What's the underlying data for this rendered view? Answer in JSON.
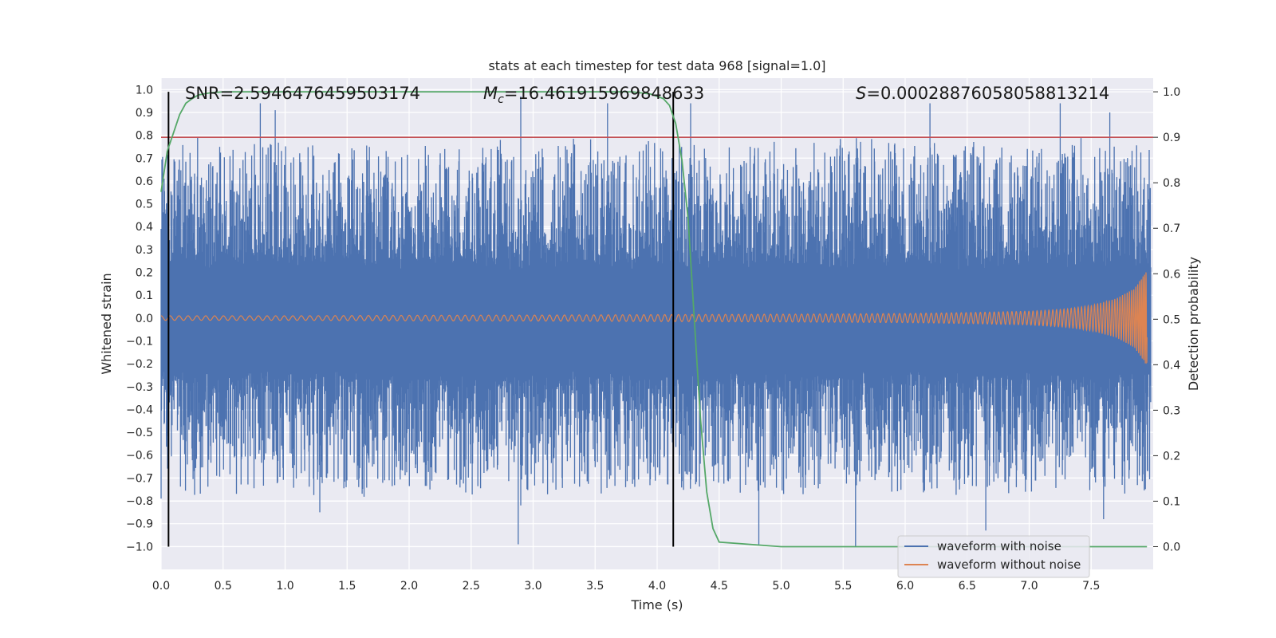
{
  "chart_data": {
    "type": "line",
    "title": "stats at each timestep for test data 968 [signal=1.0]",
    "xlabel": "Time (s)",
    "ylabel": "Whitened strain",
    "y2label": "Detection probability",
    "xlim": [
      0.0,
      8.0
    ],
    "ylim": [
      -1.1,
      1.05
    ],
    "y2lim": [
      -0.05,
      1.03
    ],
    "x_ticks": [
      "0.0",
      "0.5",
      "1.0",
      "1.5",
      "2.0",
      "2.5",
      "3.0",
      "3.5",
      "4.0",
      "4.5",
      "5.0",
      "5.5",
      "6.0",
      "6.5",
      "7.0",
      "7.5"
    ],
    "y_ticks": [
      "1.0",
      "0.9",
      "0.8",
      "0.7",
      "0.6",
      "0.5",
      "0.4",
      "0.3",
      "0.2",
      "0.1",
      "0.0",
      "−0.1",
      "−0.2",
      "−0.3",
      "−0.4",
      "−0.5",
      "−0.6",
      "−0.7",
      "−0.8",
      "−0.9",
      "−1.0"
    ],
    "y2_ticks": [
      "1.0",
      "0.9",
      "0.8",
      "0.7",
      "0.6",
      "0.5",
      "0.4",
      "0.3",
      "0.2",
      "0.1",
      "0.0"
    ],
    "grid": true,
    "legend_placement": "lower-right",
    "annotations": {
      "snr": "SNR=2.5946476459503174",
      "mc_symbol": "M",
      "mc_sub": "c",
      "mc_value": "=16.461915969848633",
      "s_symbol": "S",
      "s_value": "=0.00028876058058813214"
    },
    "vlines_x": [
      0.06,
      4.13
    ],
    "threshold_y2": 0.9,
    "series": [
      {
        "name": "waveform with noise",
        "color": "#4c72b0",
        "kind": "noisy strain, roughly within ±1.0, dense fill",
        "spikes": [
          [
            0.8,
            0.94
          ],
          [
            0.92,
            0.91
          ],
          [
            2.9,
            0.97
          ],
          [
            3.6,
            0.94
          ],
          [
            4.27,
            0.94
          ],
          [
            6.2,
            0.94
          ],
          [
            7.25,
            0.94
          ],
          [
            7.65,
            0.9
          ],
          [
            2.88,
            -0.99
          ],
          [
            4.82,
            -0.99
          ],
          [
            5.6,
            -1.0
          ],
          [
            6.65,
            -0.93
          ],
          [
            0.0,
            -0.79
          ],
          [
            1.28,
            -0.85
          ],
          [
            2.9,
            -0.82
          ],
          [
            7.6,
            -0.88
          ]
        ]
      },
      {
        "name": "waveform without noise",
        "color": "#dd8452",
        "kind": "chirp, amplitude grows toward 7.95 s",
        "x": [
          0.0,
          1.0,
          2.0,
          3.0,
          4.0,
          5.0,
          6.0,
          6.5,
          7.0,
          7.3,
          7.5,
          7.7,
          7.85,
          7.95
        ],
        "amplitude": [
          0.01,
          0.01,
          0.012,
          0.013,
          0.015,
          0.017,
          0.02,
          0.024,
          0.03,
          0.04,
          0.055,
          0.085,
          0.13,
          0.21
        ]
      },
      {
        "name": "",
        "color": "#55a868",
        "kind": "detection probability (right axis)",
        "x": [
          0.0,
          0.05,
          0.1,
          0.15,
          0.2,
          0.25,
          0.3,
          0.4,
          0.5,
          1.0,
          2.0,
          3.0,
          3.5,
          3.8,
          3.95,
          4.05,
          4.1,
          4.15,
          4.2,
          4.25,
          4.3,
          4.35,
          4.4,
          4.45,
          4.5,
          5.0,
          6.0,
          7.0,
          7.95
        ],
        "values": [
          0.78,
          0.87,
          0.91,
          0.95,
          0.975,
          0.985,
          0.993,
          0.998,
          1.0,
          1.0,
          1.0,
          1.0,
          1.0,
          1.0,
          0.995,
          0.985,
          0.97,
          0.93,
          0.85,
          0.72,
          0.5,
          0.28,
          0.12,
          0.04,
          0.01,
          0.0,
          0.0,
          0.0,
          0.0
        ]
      },
      {
        "name": "",
        "color": "#c44e52",
        "kind": "threshold line (right axis)",
        "values": [
          0.9
        ]
      }
    ]
  }
}
